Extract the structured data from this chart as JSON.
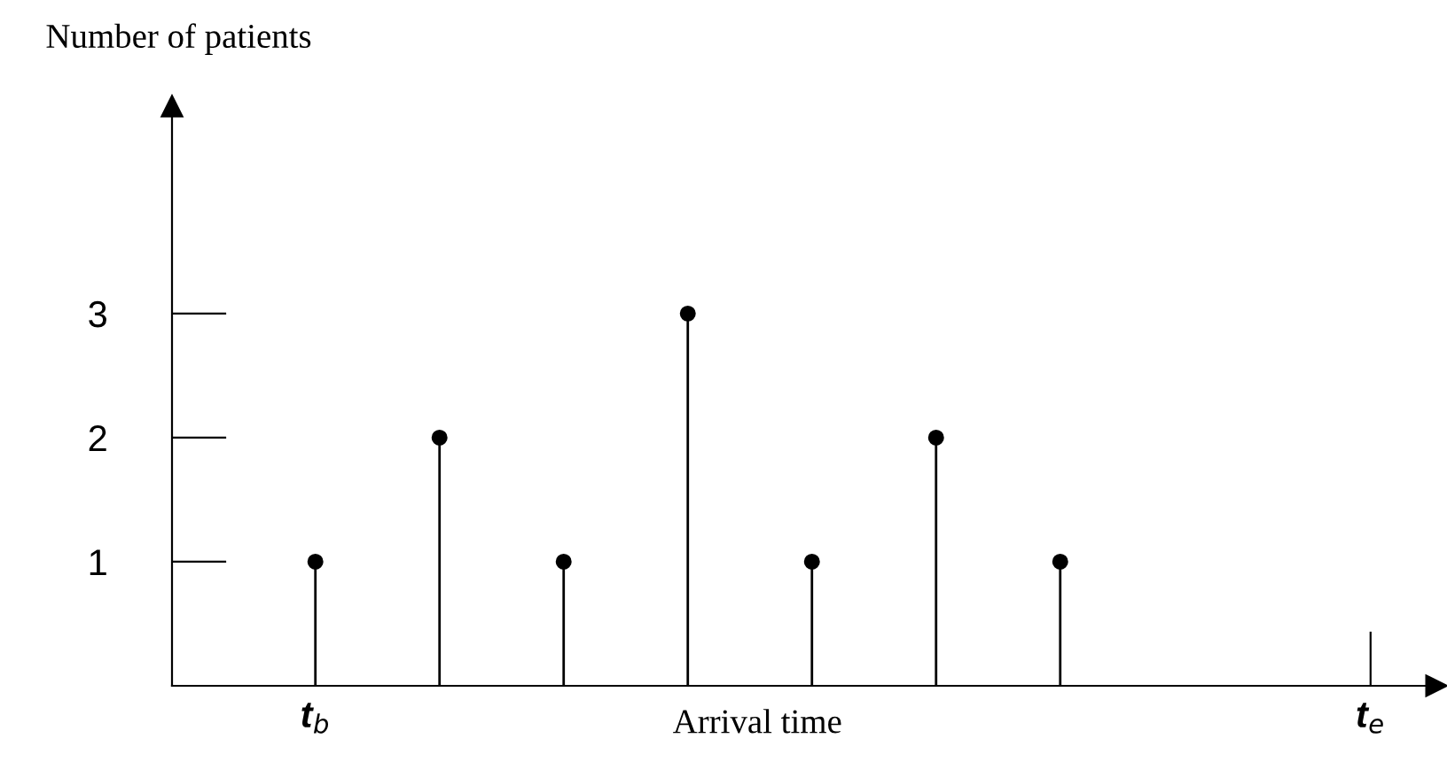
{
  "chart_data": {
    "type": "lollipop",
    "xlabel": "Arrival time",
    "ylabel": "Number of patients",
    "categories": [
      "t$_{b}$",
      null,
      null,
      null,
      null,
      null,
      null,
      null,
      null,
      null,
      null,
      null,
      null,
      null,
      null,
      null,
      null,
      "t$_{e}$"
    ],
    "series": [
      {
        "color": "#000000",
        "values": [
          1,
          null,
          2,
          null,
          1,
          null,
          3,
          null,
          1,
          null,
          2,
          null,
          1,
          null,
          null,
          null,
          null,
          null
        ]
      }
    ],
    "ylim": [
      0,
      4.67
    ],
    "yticks": [
      1,
      2,
      3
    ],
    "marker": "circle",
    "grid": false,
    "legend": false
  }
}
